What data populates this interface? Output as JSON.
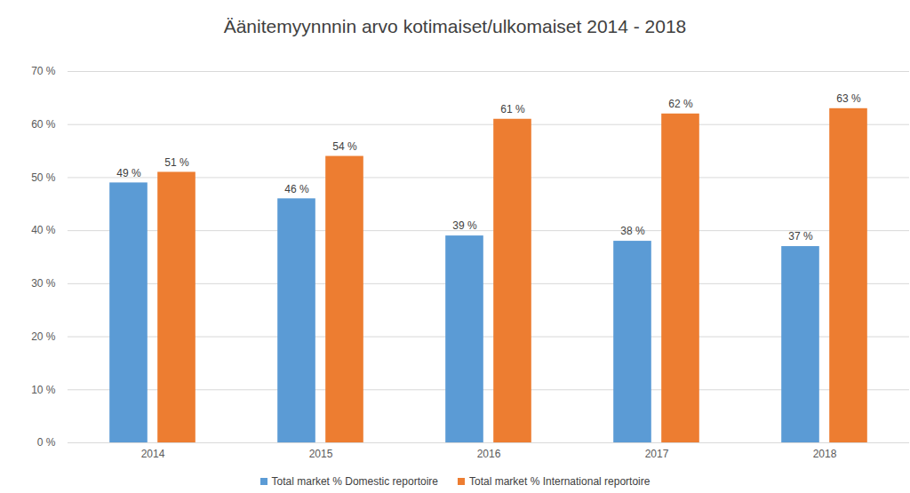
{
  "chart_data": {
    "type": "bar",
    "title": "Äänitemyynnnin arvo kotimaiset/ulkomaiset 2014 - 2018",
    "categories": [
      "2014",
      "2015",
      "2016",
      "2017",
      "2018"
    ],
    "series": [
      {
        "name": "Total market % Domestic reportoire",
        "color": "#5b9bd5",
        "values": [
          49,
          46,
          39,
          38,
          37
        ],
        "value_labels": [
          "49 %",
          "46 %",
          "39 %",
          "38 %",
          "37 %"
        ]
      },
      {
        "name": "Total market % International reportoire",
        "color": "#ed7d31",
        "values": [
          51,
          54,
          61,
          62,
          63
        ],
        "value_labels": [
          "51 %",
          "54 %",
          "61 %",
          "62 %",
          "63 %"
        ]
      }
    ],
    "ylim": [
      0,
      70
    ],
    "yticks": [
      {
        "value": 0,
        "label": "0 %"
      },
      {
        "value": 10,
        "label": "10 %"
      },
      {
        "value": 20,
        "label": "20 %"
      },
      {
        "value": 30,
        "label": "30 %"
      },
      {
        "value": 40,
        "label": "40 %"
      },
      {
        "value": 50,
        "label": "50 %"
      },
      {
        "value": 60,
        "label": "60 %"
      },
      {
        "value": 70,
        "label": "70 %"
      }
    ],
    "grid": true,
    "legend": "bottom",
    "data_labels": true
  }
}
